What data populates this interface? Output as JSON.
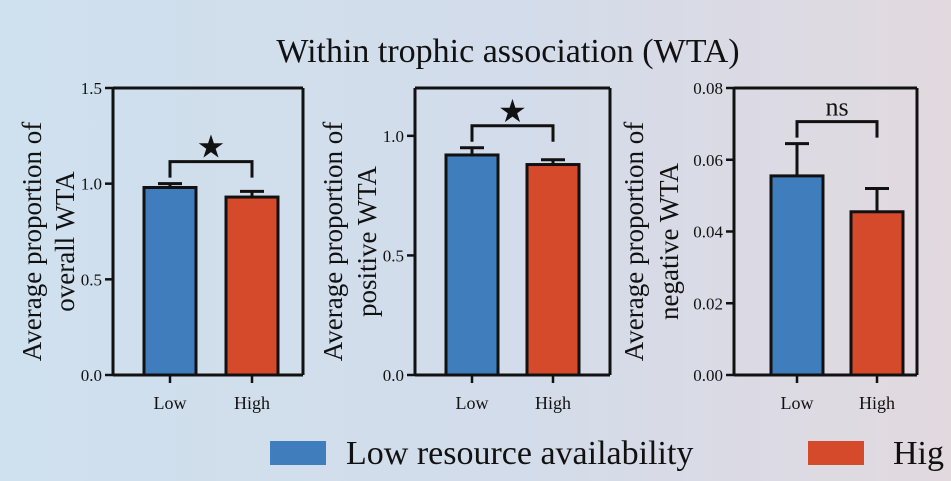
{
  "figure_title": "Within trophic association (WTA)",
  "legend": [
    {
      "label": "Low resource availability",
      "color": "#3f7dbd"
    },
    {
      "label": "Hig",
      "color": "#d64a2c"
    }
  ],
  "chart_data": [
    {
      "type": "bar",
      "title": "",
      "ylabel_lines": [
        "Average proportion of",
        "overall WTA"
      ],
      "xlabel": "",
      "categories": [
        "Low",
        "High"
      ],
      "values": [
        0.98,
        0.93
      ],
      "errors": [
        0.02,
        0.03
      ],
      "colors": [
        "#3f7dbd",
        "#d64a2c"
      ],
      "ylim": [
        0,
        1.5
      ],
      "yticks": [
        0,
        0.5,
        1.0,
        1.5
      ],
      "ytick_labels": [
        "0.0",
        "0.5",
        "1.0",
        "1.5"
      ],
      "significance": {
        "symbol": "★",
        "between": [
          0,
          1
        ]
      },
      "grid": false,
      "legend": "bottom"
    },
    {
      "type": "bar",
      "title": "",
      "ylabel_lines": [
        "Average proportion of",
        "positive WTA"
      ],
      "xlabel": "",
      "categories": [
        "Low",
        "High"
      ],
      "values": [
        0.92,
        0.88
      ],
      "errors": [
        0.03,
        0.02
      ],
      "colors": [
        "#3f7dbd",
        "#d64a2c"
      ],
      "ylim": [
        0,
        1.2
      ],
      "yticks": [
        0,
        0.5,
        1.0
      ],
      "ytick_labels": [
        "0.0",
        "0.5",
        "1.0"
      ],
      "significance": {
        "symbol": "★",
        "between": [
          0,
          1
        ]
      },
      "grid": false,
      "legend": "bottom"
    },
    {
      "type": "bar",
      "title": "",
      "ylabel_lines": [
        "Average proportion of",
        "negative WTA"
      ],
      "xlabel": "",
      "categories": [
        "Low",
        "High"
      ],
      "values": [
        0.0555,
        0.0455
      ],
      "errors": [
        0.009,
        0.0065
      ],
      "colors": [
        "#3f7dbd",
        "#d64a2c"
      ],
      "ylim": [
        0,
        0.08
      ],
      "yticks": [
        0,
        0.02,
        0.04,
        0.06,
        0.08
      ],
      "ytick_labels": [
        "0.00",
        "0.02",
        "0.04",
        "0.06",
        "0.08"
      ],
      "significance": {
        "symbol": "ns",
        "between": [
          0,
          1
        ]
      },
      "grid": false,
      "legend": "bottom"
    }
  ]
}
